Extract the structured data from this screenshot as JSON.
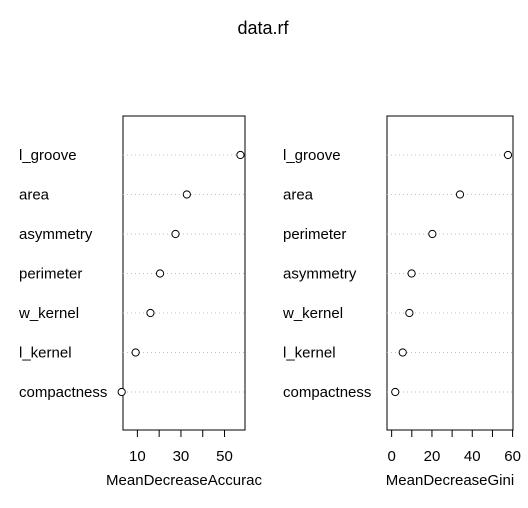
{
  "title": "data.rf",
  "chart_data": [
    {
      "type": "dotchart",
      "xlabel": "MeanDecreaseAccurac",
      "xlim": [
        3.4,
        59.4
      ],
      "xticks": [
        10,
        20,
        30,
        40,
        50
      ],
      "xtick_labels": [
        "10",
        "",
        "30",
        "",
        "50"
      ],
      "grid": "dotted horizontal",
      "categories": [
        "l_groove",
        "area",
        "asymmetry",
        "perimeter",
        "w_kernel",
        "l_kernel",
        "compactness"
      ],
      "values": [
        57.3,
        32.7,
        27.5,
        20.4,
        16.0,
        9.2,
        2.8
      ]
    },
    {
      "type": "dotchart",
      "xlabel": "MeanDecreaseGini",
      "xlim": [
        -2.3,
        60.2
      ],
      "xticks": [
        0,
        10,
        20,
        30,
        40,
        50,
        60
      ],
      "xtick_labels": [
        "0",
        "",
        "20",
        "",
        "40",
        "",
        "60"
      ],
      "grid": "dotted horizontal",
      "categories": [
        "l_groove",
        "area",
        "perimeter",
        "asymmetry",
        "w_kernel",
        "l_kernel",
        "compactness"
      ],
      "values": [
        57.7,
        33.9,
        20.2,
        9.9,
        8.8,
        5.5,
        1.8
      ]
    }
  ]
}
